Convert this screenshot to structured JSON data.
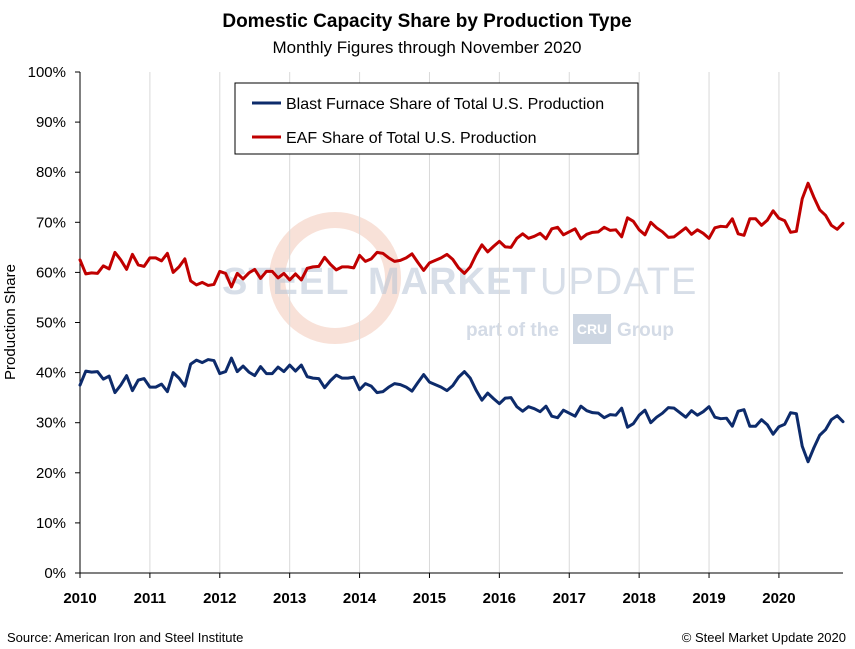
{
  "chart_data": {
    "type": "line",
    "title": "Domestic Capacity Share by Production Type",
    "subtitle": "Monthly Figures through November 2020",
    "ylabel": "Production Share",
    "xlabel": "",
    "ylim": [
      0,
      100
    ],
    "y_ticks": [
      "0%",
      "10%",
      "20%",
      "30%",
      "40%",
      "50%",
      "60%",
      "70%",
      "80%",
      "90%",
      "100%"
    ],
    "x_ticks": [
      "2010",
      "2011",
      "2012",
      "2013",
      "2014",
      "2015",
      "2016",
      "2017",
      "2018",
      "2019",
      "2020"
    ],
    "x_start": "2010-01",
    "x_end": "2020-11",
    "grid": "vertical",
    "legend_position": "top-left",
    "series": [
      {
        "name": "Blast Furnace Share of Total U.S. Production",
        "color": "#0d2b6b",
        "values": [
          37.5,
          40.3,
          40.1,
          40.2,
          38.7,
          39.3,
          36.0,
          37.5,
          39.4,
          36.4,
          38.5,
          38.8,
          37.1,
          37.1,
          37.7,
          36.2,
          40.0,
          38.9,
          37.3,
          41.7,
          42.5,
          42.0,
          42.6,
          42.4,
          39.8,
          40.2,
          42.9,
          40.2,
          41.3,
          40.1,
          39.4,
          41.2,
          39.8,
          39.8,
          41.1,
          40.2,
          41.5,
          40.3,
          41.5,
          39.2,
          38.9,
          38.8,
          37.0,
          38.4,
          39.5,
          38.9,
          38.9,
          39.1,
          36.6,
          37.8,
          37.3,
          36.0,
          36.2,
          37.1,
          37.8,
          37.6,
          37.1,
          36.3,
          38.0,
          39.6,
          38.1,
          37.6,
          37.1,
          36.4,
          37.4,
          39.1,
          40.2,
          38.9,
          36.5,
          34.5,
          35.9,
          34.8,
          33.8,
          34.9,
          35.0,
          33.2,
          32.3,
          33.2,
          32.8,
          32.2,
          33.3,
          31.3,
          31.0,
          32.5,
          31.9,
          31.3,
          33.3,
          32.4,
          32.0,
          31.9,
          31.0,
          31.6,
          31.5,
          32.9,
          29.1,
          29.8,
          31.5,
          32.5,
          30.0,
          31.1,
          31.9,
          33.0,
          32.9,
          32.0,
          31.1,
          32.4,
          31.5,
          32.2,
          33.2,
          31.1,
          30.8,
          30.9,
          29.3,
          32.3,
          32.6,
          29.3,
          29.3,
          30.6,
          29.6,
          27.7,
          29.2,
          29.7,
          32.0,
          31.8,
          25.3,
          22.2,
          25.0,
          27.5,
          28.6,
          30.6,
          31.4,
          30.2
        ]
      },
      {
        "name": "EAF Share of Total U.S. Production",
        "color": "#c00000",
        "values": [
          62.5,
          59.7,
          59.9,
          59.8,
          61.3,
          60.7,
          64.0,
          62.5,
          60.6,
          63.6,
          61.5,
          61.2,
          62.9,
          62.9,
          62.3,
          63.8,
          60.0,
          61.1,
          62.7,
          58.3,
          57.5,
          58.0,
          57.4,
          57.6,
          60.2,
          59.8,
          57.1,
          59.8,
          58.7,
          59.9,
          60.6,
          58.8,
          60.2,
          60.2,
          58.9,
          59.8,
          58.5,
          59.7,
          58.5,
          60.8,
          61.1,
          61.2,
          63.0,
          61.6,
          60.5,
          61.1,
          61.1,
          60.9,
          63.4,
          62.2,
          62.7,
          64.0,
          63.8,
          62.9,
          62.2,
          62.4,
          62.9,
          63.7,
          62.0,
          60.4,
          61.9,
          62.4,
          62.9,
          63.6,
          62.6,
          60.9,
          59.8,
          61.1,
          63.5,
          65.5,
          64.1,
          65.2,
          66.2,
          65.1,
          65.0,
          66.8,
          67.7,
          66.8,
          67.2,
          67.8,
          66.7,
          68.7,
          69.0,
          67.5,
          68.1,
          68.7,
          66.7,
          67.6,
          68.0,
          68.1,
          69.0,
          68.4,
          68.5,
          67.1,
          70.9,
          70.2,
          68.5,
          67.5,
          70.0,
          68.9,
          68.1,
          67.0,
          67.1,
          68.0,
          68.9,
          67.6,
          68.5,
          67.8,
          66.8,
          68.9,
          69.2,
          69.1,
          70.7,
          67.7,
          67.4,
          70.7,
          70.7,
          69.4,
          70.4,
          72.3,
          70.8,
          70.3,
          68.0,
          68.2,
          74.7,
          77.8,
          75.0,
          72.5,
          71.4,
          69.4,
          68.6,
          69.8
        ]
      }
    ]
  },
  "footer": {
    "source": "Source: American Iron and Steel Institute",
    "copyright": "© Steel Market Update 2020"
  },
  "watermark": {
    "main_left": "STEEL",
    "main_mid": "MARKET",
    "main_right": "UPDATE",
    "sub_left": "part of the",
    "sub_badge": "CRU",
    "sub_right": "Group"
  }
}
